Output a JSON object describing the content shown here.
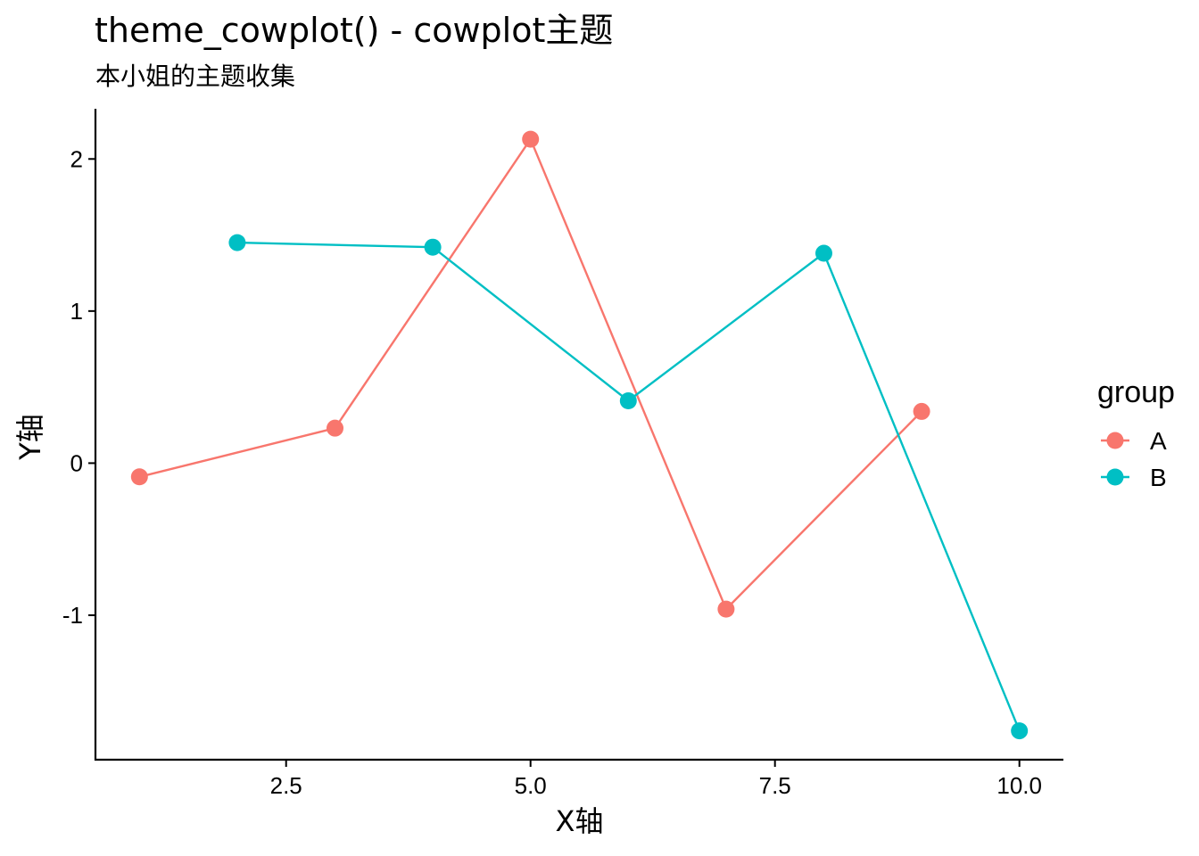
{
  "chart_data": {
    "type": "line",
    "title": "theme_cowplot() - cowplot主题",
    "subtitle": "本小姐的主题收集",
    "xlabel": "X轴",
    "ylabel": "Y轴",
    "xlim": [
      0.55,
      10.45
    ],
    "ylim": [
      -1.95,
      2.33
    ],
    "x_ticks": [
      2.5,
      5.0,
      7.5,
      10.0
    ],
    "x_tick_labels": [
      "2.5",
      "5.0",
      "7.5",
      "10.0"
    ],
    "y_ticks": [
      -1,
      0,
      1,
      2
    ],
    "y_tick_labels": [
      "-1",
      "0",
      "1",
      "2"
    ],
    "grid": false,
    "legend": {
      "title": "group",
      "position": "right"
    },
    "series": [
      {
        "name": "A",
        "color": "#F8766D",
        "x": [
          1,
          3,
          5,
          7,
          9
        ],
        "y": [
          -0.09,
          0.23,
          2.13,
          -0.96,
          0.34
        ]
      },
      {
        "name": "B",
        "color": "#00BFC4",
        "x": [
          2,
          4,
          6,
          8,
          10
        ],
        "y": [
          1.45,
          1.42,
          0.41,
          1.38,
          -1.76
        ]
      }
    ]
  }
}
